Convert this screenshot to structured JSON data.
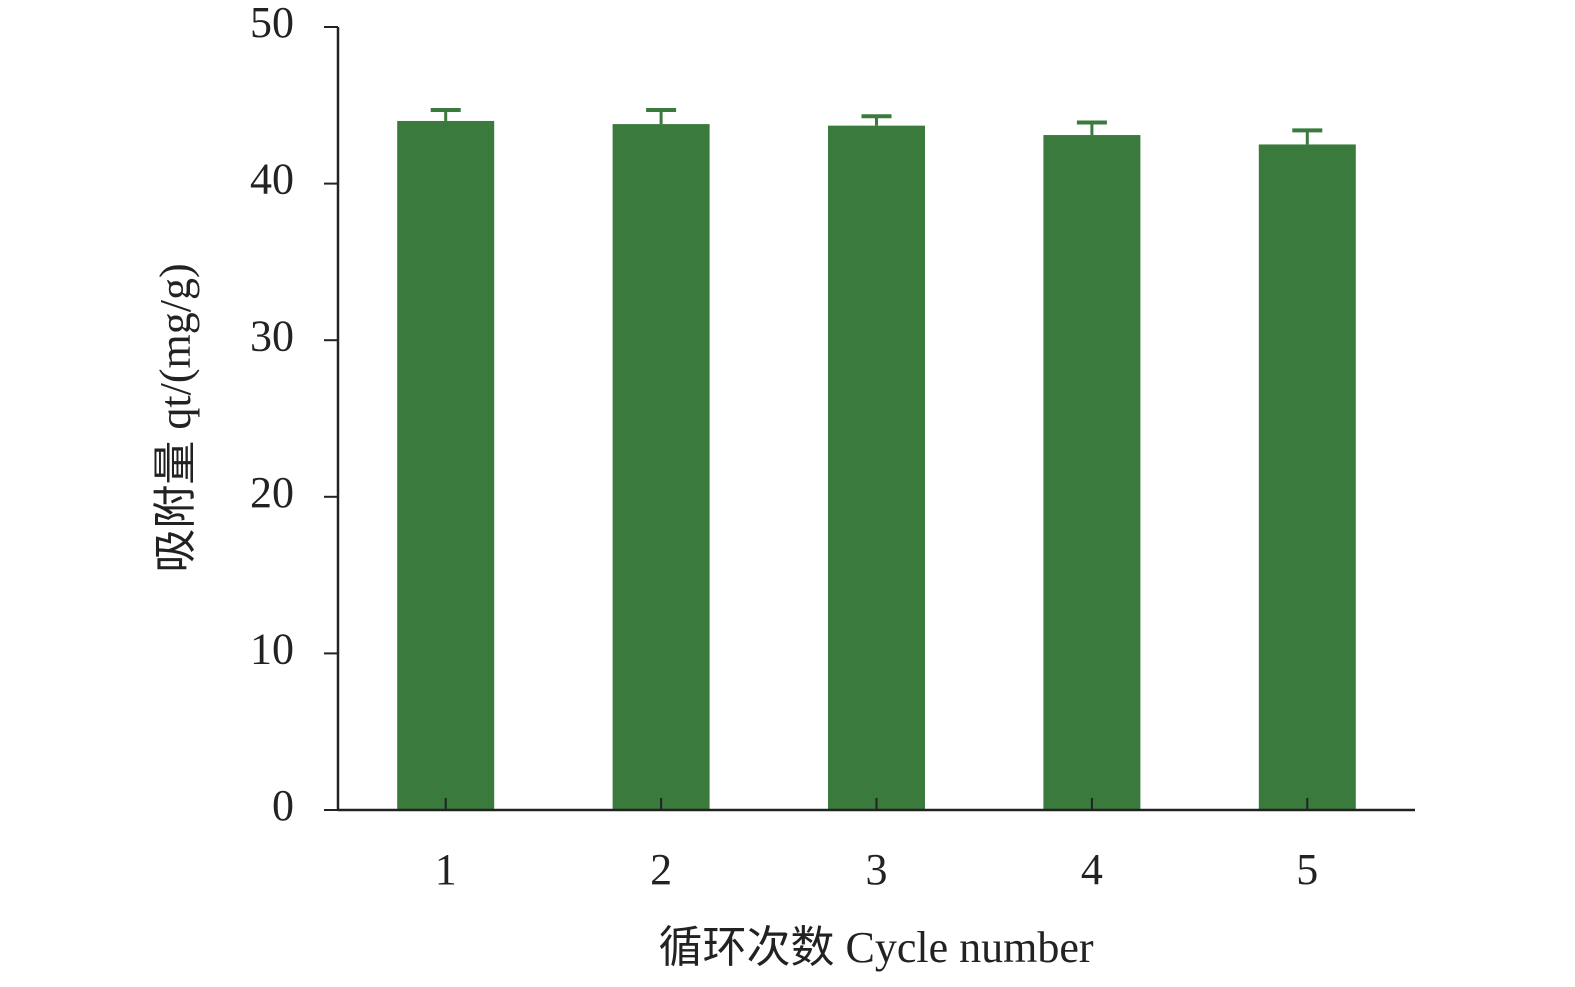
{
  "chart_data": {
    "type": "bar",
    "xlabel": "循环次数 Cycle number",
    "ylabel": "吸附量 qt/(mg/g)",
    "categories": [
      "1",
      "2",
      "3",
      "4",
      "5"
    ],
    "values": [
      44.0,
      43.8,
      43.7,
      43.1,
      42.5
    ],
    "errors": [
      0.7,
      0.9,
      0.6,
      0.8,
      0.9
    ],
    "color": "#3a7a3c",
    "ylim": [
      0,
      50
    ],
    "yticks": [
      0,
      10,
      20,
      30,
      40,
      50
    ],
    "grid": false
  }
}
